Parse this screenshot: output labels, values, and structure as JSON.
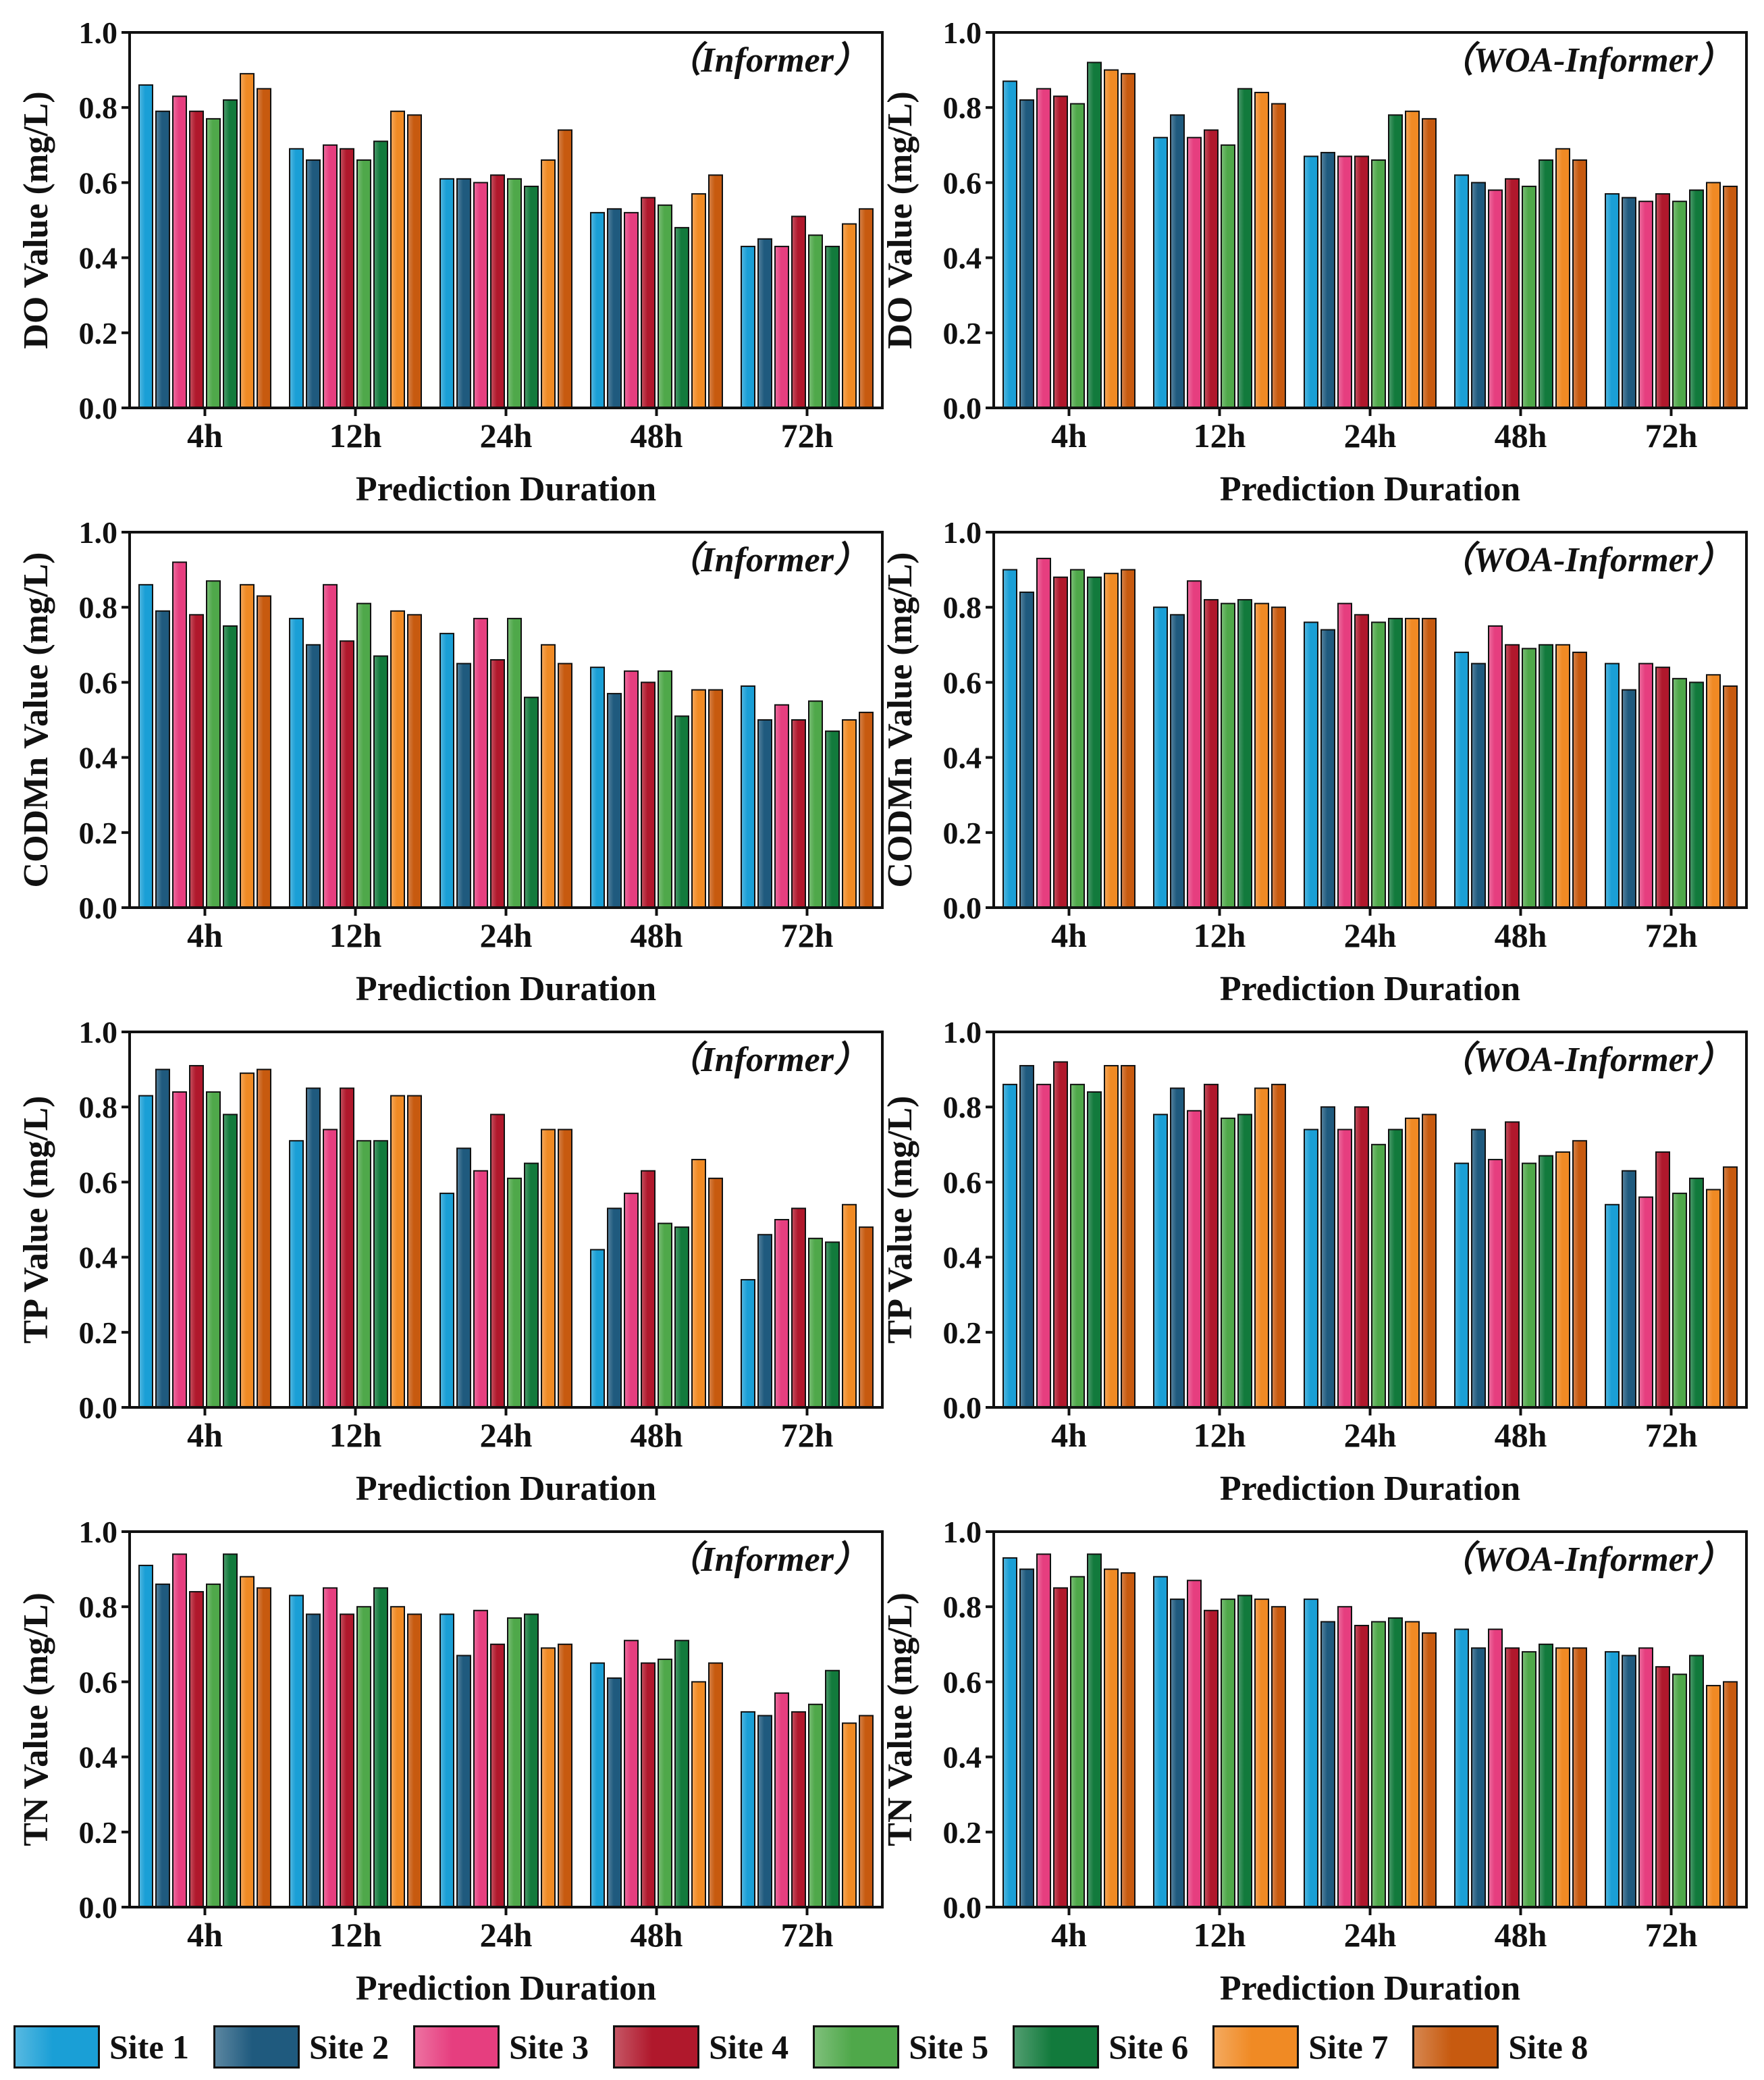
{
  "chart_data": [
    {
      "type": "bar",
      "model": "（Informer）",
      "ylabel": "DO Value (mg/L)",
      "xlabel": "Prediction Duration",
      "categories": [
        "4h",
        "12h",
        "24h",
        "48h",
        "72h"
      ],
      "ylim": [
        0,
        1.0
      ],
      "yticks": [
        "0.0",
        "0.2",
        "0.4",
        "0.6",
        "0.8",
        "1.0"
      ],
      "series": [
        {
          "name": "Site 1",
          "values": [
            0.86,
            0.69,
            0.61,
            0.52,
            0.43
          ]
        },
        {
          "name": "Site 2",
          "values": [
            0.79,
            0.66,
            0.61,
            0.53,
            0.45
          ]
        },
        {
          "name": "Site 3",
          "values": [
            0.83,
            0.7,
            0.6,
            0.52,
            0.43
          ]
        },
        {
          "name": "Site 4",
          "values": [
            0.79,
            0.69,
            0.62,
            0.56,
            0.51
          ]
        },
        {
          "name": "Site 5",
          "values": [
            0.77,
            0.66,
            0.61,
            0.54,
            0.46
          ]
        },
        {
          "name": "Site 6",
          "values": [
            0.82,
            0.71,
            0.59,
            0.48,
            0.43
          ]
        },
        {
          "name": "Site 7",
          "values": [
            0.89,
            0.79,
            0.66,
            0.57,
            0.49
          ]
        },
        {
          "name": "Site 8",
          "values": [
            0.85,
            0.78,
            0.74,
            0.62,
            0.53
          ]
        }
      ]
    },
    {
      "type": "bar",
      "model": "（WOA-Informer）",
      "ylabel": "DO Value (mg/L)",
      "xlabel": "Prediction Duration",
      "categories": [
        "4h",
        "12h",
        "24h",
        "48h",
        "72h"
      ],
      "ylim": [
        0,
        1.0
      ],
      "yticks": [
        "0.0",
        "0.2",
        "0.4",
        "0.6",
        "0.8",
        "1.0"
      ],
      "series": [
        {
          "name": "Site 1",
          "values": [
            0.87,
            0.72,
            0.67,
            0.62,
            0.57
          ]
        },
        {
          "name": "Site 2",
          "values": [
            0.82,
            0.78,
            0.68,
            0.6,
            0.56
          ]
        },
        {
          "name": "Site 3",
          "values": [
            0.85,
            0.72,
            0.67,
            0.58,
            0.55
          ]
        },
        {
          "name": "Site 4",
          "values": [
            0.83,
            0.74,
            0.67,
            0.61,
            0.57
          ]
        },
        {
          "name": "Site 5",
          "values": [
            0.81,
            0.7,
            0.66,
            0.59,
            0.55
          ]
        },
        {
          "name": "Site 6",
          "values": [
            0.92,
            0.85,
            0.78,
            0.66,
            0.58
          ]
        },
        {
          "name": "Site 7",
          "values": [
            0.9,
            0.84,
            0.79,
            0.69,
            0.6
          ]
        },
        {
          "name": "Site 8",
          "values": [
            0.89,
            0.81,
            0.77,
            0.66,
            0.59
          ]
        }
      ]
    },
    {
      "type": "bar",
      "model": "（Informer）",
      "ylabel": "CODMn Value (mg/L)",
      "xlabel": "Prediction Duration",
      "categories": [
        "4h",
        "12h",
        "24h",
        "48h",
        "72h"
      ],
      "ylim": [
        0,
        1.0
      ],
      "yticks": [
        "0.0",
        "0.2",
        "0.4",
        "0.6",
        "0.8",
        "1.0"
      ],
      "series": [
        {
          "name": "Site 1",
          "values": [
            0.86,
            0.77,
            0.73,
            0.64,
            0.59
          ]
        },
        {
          "name": "Site 2",
          "values": [
            0.79,
            0.7,
            0.65,
            0.57,
            0.5
          ]
        },
        {
          "name": "Site 3",
          "values": [
            0.92,
            0.86,
            0.77,
            0.63,
            0.54
          ]
        },
        {
          "name": "Site 4",
          "values": [
            0.78,
            0.71,
            0.66,
            0.6,
            0.5
          ]
        },
        {
          "name": "Site 5",
          "values": [
            0.87,
            0.81,
            0.77,
            0.63,
            0.55
          ]
        },
        {
          "name": "Site 6",
          "values": [
            0.75,
            0.67,
            0.56,
            0.51,
            0.47
          ]
        },
        {
          "name": "Site 7",
          "values": [
            0.86,
            0.79,
            0.7,
            0.58,
            0.5
          ]
        },
        {
          "name": "Site 8",
          "values": [
            0.83,
            0.78,
            0.65,
            0.58,
            0.52
          ]
        }
      ]
    },
    {
      "type": "bar",
      "model": "（WOA-Informer）",
      "ylabel": "CODMn Value (mg/L)",
      "xlabel": "Prediction Duration",
      "categories": [
        "4h",
        "12h",
        "24h",
        "48h",
        "72h"
      ],
      "ylim": [
        0,
        1.0
      ],
      "yticks": [
        "0.0",
        "0.2",
        "0.4",
        "0.6",
        "0.8",
        "1.0"
      ],
      "series": [
        {
          "name": "Site 1",
          "values": [
            0.9,
            0.8,
            0.76,
            0.68,
            0.65
          ]
        },
        {
          "name": "Site 2",
          "values": [
            0.84,
            0.78,
            0.74,
            0.65,
            0.58
          ]
        },
        {
          "name": "Site 3",
          "values": [
            0.93,
            0.87,
            0.81,
            0.75,
            0.65
          ]
        },
        {
          "name": "Site 4",
          "values": [
            0.88,
            0.82,
            0.78,
            0.7,
            0.64
          ]
        },
        {
          "name": "Site 5",
          "values": [
            0.9,
            0.81,
            0.76,
            0.69,
            0.61
          ]
        },
        {
          "name": "Site 6",
          "values": [
            0.88,
            0.82,
            0.77,
            0.7,
            0.6
          ]
        },
        {
          "name": "Site 7",
          "values": [
            0.89,
            0.81,
            0.77,
            0.7,
            0.62
          ]
        },
        {
          "name": "Site 8",
          "values": [
            0.9,
            0.8,
            0.77,
            0.68,
            0.59
          ]
        }
      ]
    },
    {
      "type": "bar",
      "model": "（Informer）",
      "ylabel": "TP Value (mg/L)",
      "xlabel": "Prediction Duration",
      "categories": [
        "4h",
        "12h",
        "24h",
        "48h",
        "72h"
      ],
      "ylim": [
        0,
        1.0
      ],
      "yticks": [
        "0.0",
        "0.2",
        "0.4",
        "0.6",
        "0.8",
        "1.0"
      ],
      "series": [
        {
          "name": "Site 1",
          "values": [
            0.83,
            0.71,
            0.57,
            0.42,
            0.34
          ]
        },
        {
          "name": "Site 2",
          "values": [
            0.9,
            0.85,
            0.69,
            0.53,
            0.46
          ]
        },
        {
          "name": "Site 3",
          "values": [
            0.84,
            0.74,
            0.63,
            0.57,
            0.5
          ]
        },
        {
          "name": "Site 4",
          "values": [
            0.91,
            0.85,
            0.78,
            0.63,
            0.53
          ]
        },
        {
          "name": "Site 5",
          "values": [
            0.84,
            0.71,
            0.61,
            0.49,
            0.45
          ]
        },
        {
          "name": "Site 6",
          "values": [
            0.78,
            0.71,
            0.65,
            0.48,
            0.44
          ]
        },
        {
          "name": "Site 7",
          "values": [
            0.89,
            0.83,
            0.74,
            0.66,
            0.54
          ]
        },
        {
          "name": "Site 8",
          "values": [
            0.9,
            0.83,
            0.74,
            0.61,
            0.48
          ]
        }
      ]
    },
    {
      "type": "bar",
      "model": "（WOA-Informer）",
      "ylabel": "TP Value (mg/L)",
      "xlabel": "Prediction Duration",
      "categories": [
        "4h",
        "12h",
        "24h",
        "48h",
        "72h"
      ],
      "ylim": [
        0,
        1.0
      ],
      "yticks": [
        "0.0",
        "0.2",
        "0.4",
        "0.6",
        "0.8",
        "1.0"
      ],
      "series": [
        {
          "name": "Site 1",
          "values": [
            0.86,
            0.78,
            0.74,
            0.65,
            0.54
          ]
        },
        {
          "name": "Site 2",
          "values": [
            0.91,
            0.85,
            0.8,
            0.74,
            0.63
          ]
        },
        {
          "name": "Site 3",
          "values": [
            0.86,
            0.79,
            0.74,
            0.66,
            0.56
          ]
        },
        {
          "name": "Site 4",
          "values": [
            0.92,
            0.86,
            0.8,
            0.76,
            0.68
          ]
        },
        {
          "name": "Site 5",
          "values": [
            0.86,
            0.77,
            0.7,
            0.65,
            0.57
          ]
        },
        {
          "name": "Site 6",
          "values": [
            0.84,
            0.78,
            0.74,
            0.67,
            0.61
          ]
        },
        {
          "name": "Site 7",
          "values": [
            0.91,
            0.85,
            0.77,
            0.68,
            0.58
          ]
        },
        {
          "name": "Site 8",
          "values": [
            0.91,
            0.86,
            0.78,
            0.71,
            0.64
          ]
        }
      ]
    },
    {
      "type": "bar",
      "model": "（Informer）",
      "ylabel": "TN Value (mg/L)",
      "xlabel": "Prediction Duration",
      "categories": [
        "4h",
        "12h",
        "24h",
        "48h",
        "72h"
      ],
      "ylim": [
        0,
        1.0
      ],
      "yticks": [
        "0.0",
        "0.2",
        "0.4",
        "0.6",
        "0.8",
        "1.0"
      ],
      "series": [
        {
          "name": "Site 1",
          "values": [
            0.91,
            0.83,
            0.78,
            0.65,
            0.52
          ]
        },
        {
          "name": "Site 2",
          "values": [
            0.86,
            0.78,
            0.67,
            0.61,
            0.51
          ]
        },
        {
          "name": "Site 3",
          "values": [
            0.94,
            0.85,
            0.79,
            0.71,
            0.57
          ]
        },
        {
          "name": "Site 4",
          "values": [
            0.84,
            0.78,
            0.7,
            0.65,
            0.52
          ]
        },
        {
          "name": "Site 5",
          "values": [
            0.86,
            0.8,
            0.77,
            0.66,
            0.54
          ]
        },
        {
          "name": "Site 6",
          "values": [
            0.94,
            0.85,
            0.78,
            0.71,
            0.63
          ]
        },
        {
          "name": "Site 7",
          "values": [
            0.88,
            0.8,
            0.69,
            0.6,
            0.49
          ]
        },
        {
          "name": "Site 8",
          "values": [
            0.85,
            0.78,
            0.7,
            0.65,
            0.51
          ]
        }
      ]
    },
    {
      "type": "bar",
      "model": "（WOA-Informer）",
      "ylabel": "TN Value (mg/L)",
      "xlabel": "Prediction Duration",
      "categories": [
        "4h",
        "12h",
        "24h",
        "48h",
        "72h"
      ],
      "ylim": [
        0,
        1.0
      ],
      "yticks": [
        "0.0",
        "0.2",
        "0.4",
        "0.6",
        "0.8",
        "1.0"
      ],
      "series": [
        {
          "name": "Site 1",
          "values": [
            0.93,
            0.88,
            0.82,
            0.74,
            0.68
          ]
        },
        {
          "name": "Site 2",
          "values": [
            0.9,
            0.82,
            0.76,
            0.69,
            0.67
          ]
        },
        {
          "name": "Site 3",
          "values": [
            0.94,
            0.87,
            0.8,
            0.74,
            0.69
          ]
        },
        {
          "name": "Site 4",
          "values": [
            0.85,
            0.79,
            0.75,
            0.69,
            0.64
          ]
        },
        {
          "name": "Site 5",
          "values": [
            0.88,
            0.82,
            0.76,
            0.68,
            0.62
          ]
        },
        {
          "name": "Site 6",
          "values": [
            0.94,
            0.83,
            0.77,
            0.7,
            0.67
          ]
        },
        {
          "name": "Site 7",
          "values": [
            0.9,
            0.82,
            0.76,
            0.69,
            0.59
          ]
        },
        {
          "name": "Site 8",
          "values": [
            0.89,
            0.8,
            0.73,
            0.69,
            0.6
          ]
        }
      ]
    }
  ],
  "legend": [
    {
      "name": "Site 1",
      "color": "#1a9fd6"
    },
    {
      "name": "Site 2",
      "color": "#1f5a7e"
    },
    {
      "name": "Site 3",
      "color": "#e63e7f"
    },
    {
      "name": "Site 4",
      "color": "#b0182c"
    },
    {
      "name": "Site 5",
      "color": "#4fa84a"
    },
    {
      "name": "Site 6",
      "color": "#127a3c"
    },
    {
      "name": "Site 7",
      "color": "#f08a24"
    },
    {
      "name": "Site 8",
      "color": "#c75a0f"
    }
  ]
}
